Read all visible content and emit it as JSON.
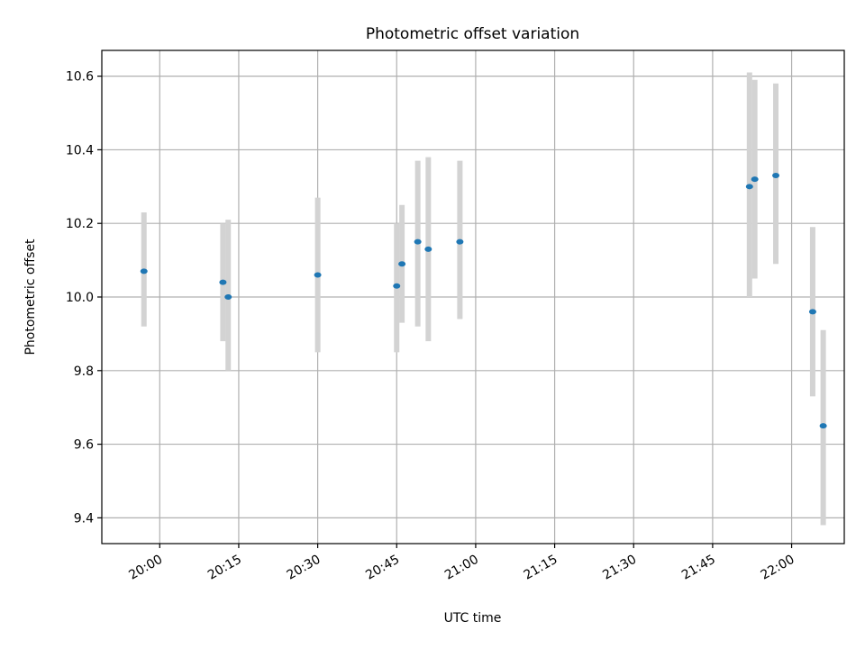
{
  "chart_data": {
    "type": "scatter",
    "title": "Photometric offset variation",
    "xlabel": "UTC time",
    "ylabel": "Photometric offset",
    "xlim": [
      "19:49",
      "22:10"
    ],
    "ylim": [
      9.33,
      10.67
    ],
    "xticks": [
      "20:00",
      "20:15",
      "20:30",
      "20:45",
      "21:00",
      "21:15",
      "21:30",
      "21:45",
      "22:00"
    ],
    "yticks": [
      9.4,
      9.6,
      9.8,
      10.0,
      10.2,
      10.4,
      10.6
    ],
    "ytick_labels": [
      "9.4",
      "9.6",
      "9.8",
      "10.0",
      "10.2",
      "10.4",
      "10.6"
    ],
    "grid": true,
    "points": [
      {
        "time": "19:57",
        "y": 10.07,
        "err_low": 9.92,
        "err_high": 10.23
      },
      {
        "time": "20:12",
        "y": 10.04,
        "err_low": 9.88,
        "err_high": 10.2
      },
      {
        "time": "20:13",
        "y": 10.0,
        "err_low": 9.8,
        "err_high": 10.21
      },
      {
        "time": "20:30",
        "y": 10.06,
        "err_low": 9.85,
        "err_high": 10.27
      },
      {
        "time": "20:45",
        "y": 10.03,
        "err_low": 9.85,
        "err_high": 10.2
      },
      {
        "time": "20:46",
        "y": 10.09,
        "err_low": 9.93,
        "err_high": 10.25
      },
      {
        "time": "20:49",
        "y": 10.15,
        "err_low": 9.92,
        "err_high": 10.37
      },
      {
        "time": "20:51",
        "y": 10.13,
        "err_low": 9.88,
        "err_high": 10.38
      },
      {
        "time": "20:57",
        "y": 10.15,
        "err_low": 9.94,
        "err_high": 10.37
      },
      {
        "time": "21:52",
        "y": 10.3,
        "err_low": 10.0,
        "err_high": 10.61
      },
      {
        "time": "21:53",
        "y": 10.32,
        "err_low": 10.05,
        "err_high": 10.59
      },
      {
        "time": "21:57",
        "y": 10.33,
        "err_low": 10.09,
        "err_high": 10.58
      },
      {
        "time": "22:04",
        "y": 9.96,
        "err_low": 9.73,
        "err_high": 10.19
      },
      {
        "time": "22:06",
        "y": 9.65,
        "err_low": 9.38,
        "err_high": 9.91
      }
    ],
    "colors": {
      "marker": "#1f77b4",
      "errorbar": "#d3d3d3",
      "grid": "#b0b0b0",
      "axes": "#000000"
    }
  }
}
